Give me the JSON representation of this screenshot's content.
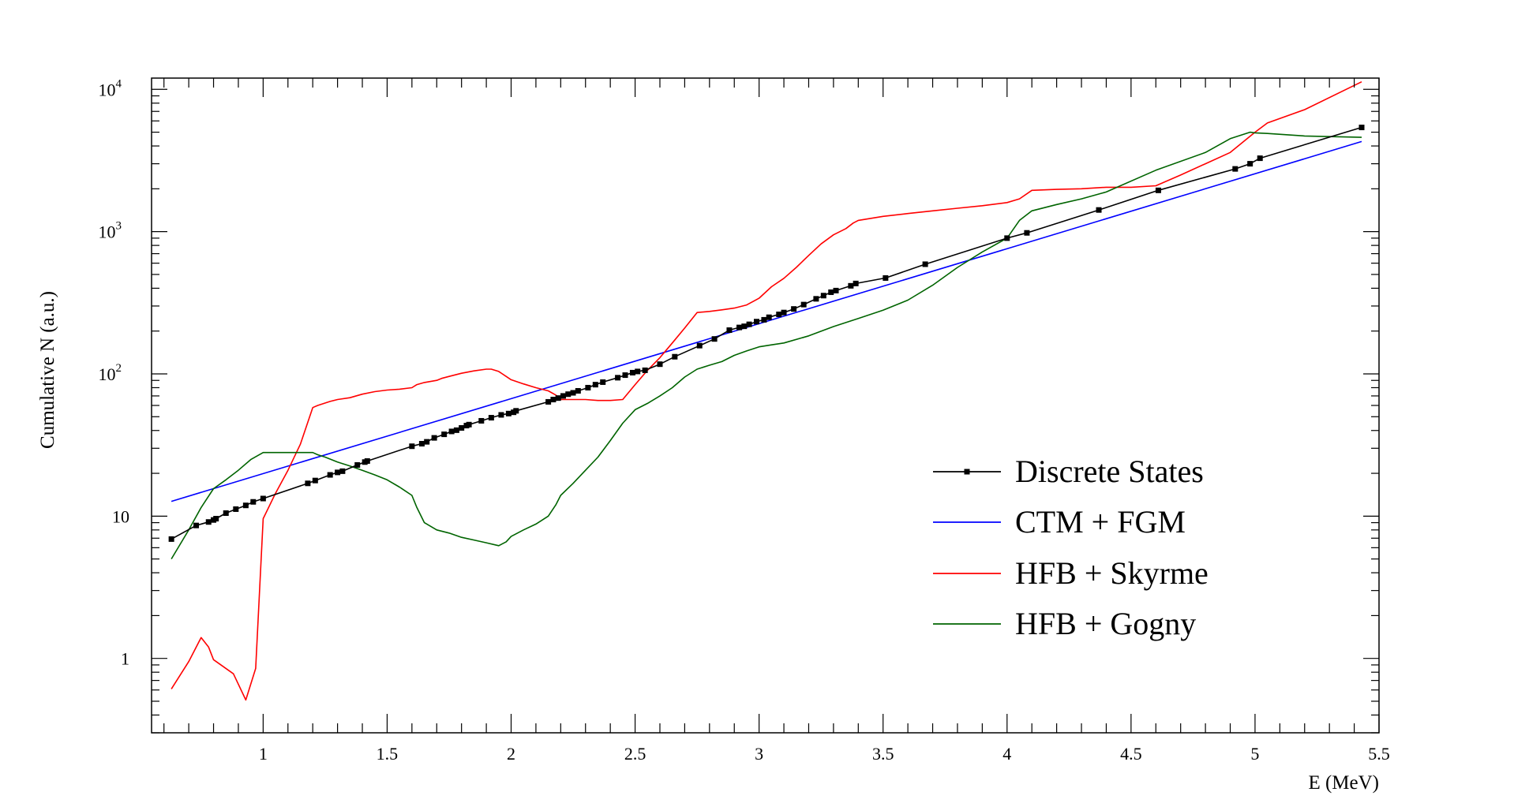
{
  "chart_data": {
    "type": "line",
    "xlabel": "E (MeV)",
    "ylabel": "Cumulative N (a.u.)",
    "yscale": "log",
    "xlim": [
      0.55,
      5.5
    ],
    "ylim": [
      0.3,
      12000
    ],
    "x_ticks": [
      {
        "value": 1,
        "label": "1"
      },
      {
        "value": 1.5,
        "label": "1.5"
      },
      {
        "value": 2,
        "label": "2"
      },
      {
        "value": 2.5,
        "label": "2.5"
      },
      {
        "value": 3,
        "label": "3"
      },
      {
        "value": 3.5,
        "label": "3.5"
      },
      {
        "value": 4,
        "label": "4"
      },
      {
        "value": 4.5,
        "label": "4.5"
      },
      {
        "value": 5,
        "label": "5"
      },
      {
        "value": 5.5,
        "label": "5.5"
      }
    ],
    "y_ticks": [
      {
        "value": 1,
        "base": "1",
        "exp": ""
      },
      {
        "value": 10,
        "base": "10",
        "exp": ""
      },
      {
        "value": 100,
        "base": "10",
        "exp": "2"
      },
      {
        "value": 1000,
        "base": "10",
        "exp": "3"
      },
      {
        "value": 10000,
        "base": "10",
        "exp": "4"
      }
    ],
    "grid": false,
    "legend_position": "bottom-right",
    "series": [
      {
        "name": "Discrete States",
        "color": "#000000",
        "marker": "square",
        "x": [
          0.63,
          0.73,
          0.78,
          0.8,
          0.81,
          0.85,
          0.89,
          0.93,
          0.96,
          1.0,
          1.18,
          1.21,
          1.27,
          1.3,
          1.32,
          1.38,
          1.41,
          1.42,
          1.6,
          1.64,
          1.66,
          1.69,
          1.73,
          1.76,
          1.78,
          1.8,
          1.82,
          1.83,
          1.88,
          1.92,
          1.96,
          1.99,
          2.01,
          2.02,
          2.15,
          2.17,
          2.19,
          2.21,
          2.23,
          2.25,
          2.27,
          2.31,
          2.34,
          2.37,
          2.43,
          2.46,
          2.49,
          2.51,
          2.54,
          2.6,
          2.66,
          2.76,
          2.82,
          2.88,
          2.92,
          2.94,
          2.96,
          2.99,
          3.02,
          3.04,
          3.08,
          3.1,
          3.14,
          3.18,
          3.23,
          3.26,
          3.29,
          3.31,
          3.37,
          3.39,
          3.51,
          3.67,
          4.0,
          4.08,
          4.37,
          4.61,
          4.92,
          4.98,
          5.02,
          5.43
        ],
        "values": [
          6.9,
          8.6,
          9.1,
          9.4,
          9.6,
          10.5,
          11.2,
          11.9,
          12.6,
          13.3,
          17.0,
          17.8,
          19.5,
          20.3,
          20.7,
          22.9,
          24.0,
          24.4,
          31.0,
          32.3,
          33.3,
          35.5,
          37.6,
          39.4,
          40.2,
          41.7,
          43.3,
          44.0,
          46.8,
          49.2,
          51.5,
          52.6,
          53.7,
          55.0,
          63.6,
          66.0,
          67.6,
          70.0,
          72.0,
          73.6,
          76.0,
          80.0,
          84.0,
          87.5,
          94.0,
          98.0,
          102,
          104,
          106,
          117,
          132,
          158,
          176,
          203,
          212,
          216,
          223,
          233,
          240,
          250,
          262,
          270,
          286,
          307,
          337,
          355,
          375,
          385,
          416,
          432,
          472,
          590,
          900,
          980,
          1420,
          1950,
          2760,
          3000,
          3280,
          5400
        ]
      },
      {
        "name": "CTM + FGM",
        "color": "#0000ff",
        "x": [
          0.63,
          5.43
        ],
        "values": [
          12.7,
          4300
        ]
      },
      {
        "name": "HFB + Skyrme",
        "color": "#ff0000",
        "x": [
          0.63,
          0.7,
          0.75,
          0.78,
          0.8,
          0.88,
          0.93,
          0.97,
          1.0,
          1.05,
          1.1,
          1.15,
          1.2,
          1.22,
          1.27,
          1.3,
          1.35,
          1.4,
          1.45,
          1.5,
          1.55,
          1.6,
          1.62,
          1.65,
          1.7,
          1.72,
          1.75,
          1.8,
          1.85,
          1.9,
          1.92,
          1.95,
          1.98,
          2.0,
          2.05,
          2.1,
          2.15,
          2.18,
          2.2,
          2.25,
          2.3,
          2.35,
          2.4,
          2.45,
          2.5,
          2.55,
          2.6,
          2.65,
          2.7,
          2.75,
          2.8,
          2.85,
          2.9,
          2.95,
          3.0,
          3.05,
          3.1,
          3.15,
          3.2,
          3.25,
          3.3,
          3.35,
          3.38,
          3.4,
          3.5,
          3.6,
          3.7,
          3.8,
          3.9,
          4.0,
          4.05,
          4.1,
          4.2,
          4.3,
          4.4,
          4.5,
          4.6,
          4.7,
          4.8,
          4.9,
          5.0,
          5.05,
          5.2,
          5.43
        ],
        "values": [
          0.61,
          0.95,
          1.4,
          1.2,
          0.98,
          0.78,
          0.51,
          0.85,
          9.6,
          14.5,
          21,
          32,
          58,
          60,
          64,
          66,
          68,
          72,
          75,
          77,
          78,
          80,
          84,
          87,
          90,
          93,
          96,
          101,
          105,
          108,
          108,
          104,
          96,
          91,
          85,
          80,
          76,
          71,
          66,
          66,
          66,
          65,
          65,
          66,
          84,
          106,
          130,
          165,
          210,
          270,
          275,
          282,
          290,
          305,
          340,
          410,
          470,
          560,
          680,
          820,
          950,
          1050,
          1150,
          1200,
          1280,
          1340,
          1400,
          1460,
          1520,
          1600,
          1700,
          1950,
          1980,
          2000,
          2050,
          2050,
          2100,
          2500,
          3000,
          3600,
          5000,
          5800,
          7200,
          11300
        ]
      },
      {
        "name": "HFB + Gogny",
        "color": "#006400",
        "x": [
          0.63,
          0.7,
          0.75,
          0.8,
          0.85,
          0.9,
          0.95,
          1.0,
          1.05,
          1.1,
          1.15,
          1.2,
          1.22,
          1.25,
          1.3,
          1.35,
          1.4,
          1.45,
          1.5,
          1.55,
          1.6,
          1.62,
          1.65,
          1.7,
          1.75,
          1.8,
          1.85,
          1.9,
          1.95,
          1.98,
          2.0,
          2.05,
          2.1,
          2.15,
          2.18,
          2.2,
          2.25,
          2.3,
          2.35,
          2.4,
          2.45,
          2.5,
          2.55,
          2.6,
          2.65,
          2.7,
          2.75,
          2.8,
          2.85,
          2.9,
          2.95,
          3.0,
          3.05,
          3.1,
          3.2,
          3.3,
          3.4,
          3.5,
          3.6,
          3.7,
          3.8,
          3.9,
          4.0,
          4.05,
          4.1,
          4.2,
          4.3,
          4.4,
          4.6,
          4.8,
          4.9,
          4.98,
          5.0,
          5.05,
          5.2,
          5.43
        ],
        "values": [
          5.0,
          8.0,
          11.5,
          15.6,
          18,
          21,
          25,
          28,
          28,
          28,
          28,
          28,
          27,
          26,
          24,
          22.5,
          21,
          19.5,
          18,
          16,
          14,
          11.5,
          9,
          8,
          7.6,
          7.1,
          6.8,
          6.5,
          6.2,
          6.6,
          7.2,
          8,
          8.8,
          10,
          12,
          14,
          17,
          21,
          26,
          34,
          45,
          56,
          62,
          70,
          80,
          95,
          108,
          115,
          122,
          135,
          145,
          155,
          160,
          165,
          185,
          215,
          245,
          280,
          330,
          420,
          560,
          720,
          900,
          1200,
          1400,
          1550,
          1700,
          1900,
          2700,
          3600,
          4500,
          5000,
          4950,
          4900,
          4700,
          4600
        ]
      }
    ]
  }
}
